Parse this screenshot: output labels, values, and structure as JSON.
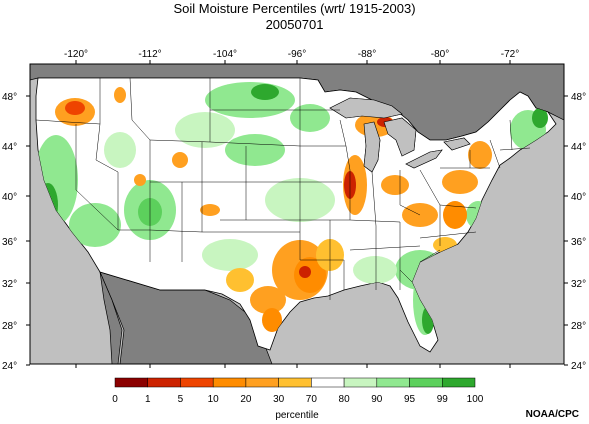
{
  "title": {
    "line1": "Soil Moisture Percentiles (wrt/ 1915-2003)",
    "line2": "20050701"
  },
  "axes": {
    "lon_labels": [
      "-120°",
      "-112°",
      "-104°",
      "-96°",
      "-88°",
      "-80°",
      "-72°"
    ],
    "lat_labels": [
      "48°",
      "44°",
      "40°",
      "36°",
      "32°",
      "28°",
      "24°"
    ]
  },
  "colorbar": {
    "title": "percentile",
    "tick_labels": [
      "0",
      "1",
      "5",
      "10",
      "20",
      "30",
      "70",
      "80",
      "90",
      "95",
      "99",
      "100"
    ],
    "colors": [
      "#8b0000",
      "#cc2200",
      "#ee4400",
      "#ff8c00",
      "#ffa020",
      "#ffc030",
      "#ffffff",
      "#c8f5c0",
      "#90e890",
      "#5cd05c",
      "#2ea82e"
    ]
  },
  "credit": "NOAA/CPC",
  "map_colors": {
    "ocean": "#c0c0c0",
    "foreign_land": "#808080",
    "great_lakes": "#c0c0c0"
  }
}
